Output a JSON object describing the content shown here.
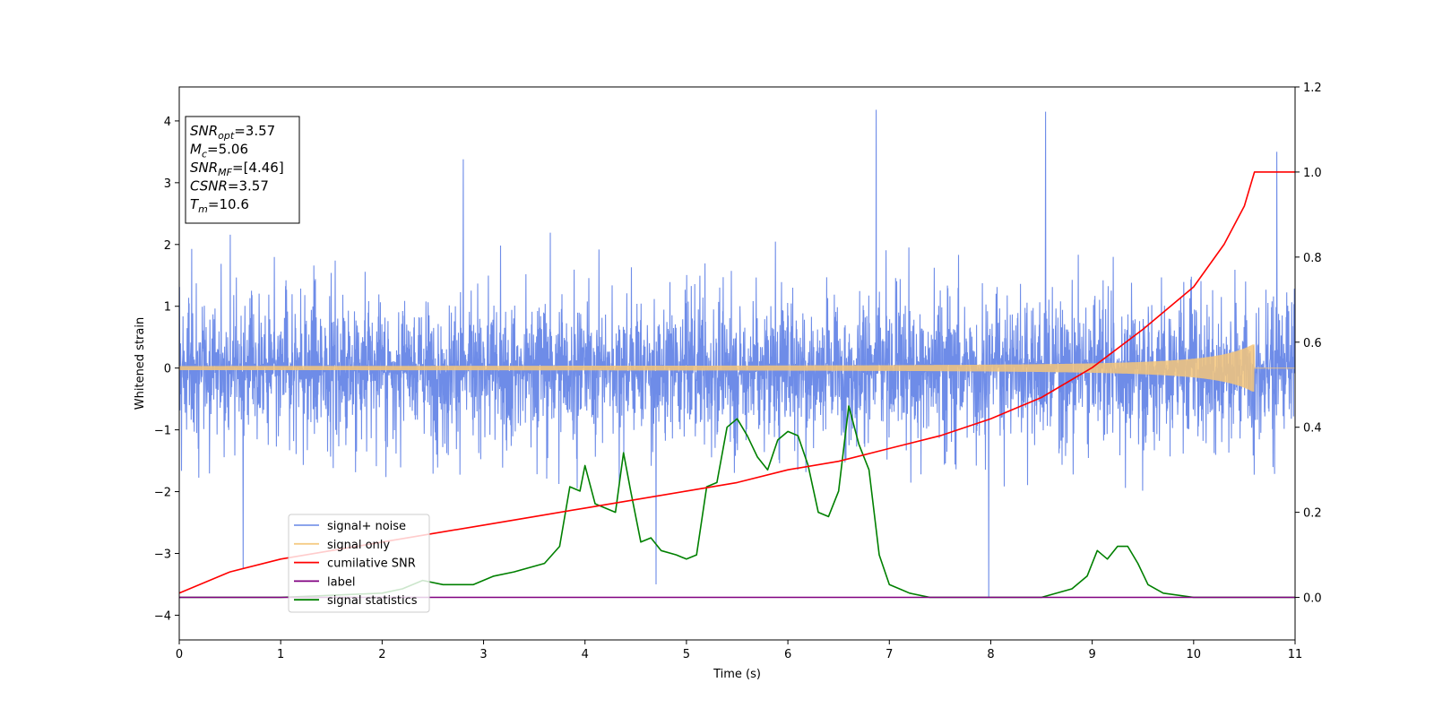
{
  "chart_data": {
    "type": "line",
    "xlabel": "Time (s)",
    "ylabel": "Whitened strain",
    "xlim": [
      0,
      11
    ],
    "ylim": [
      -4.4,
      4.55
    ],
    "y2lim": [
      -0.1,
      1.2
    ],
    "x_ticks": [
      "0",
      "1",
      "2",
      "3",
      "4",
      "5",
      "6",
      "7",
      "8",
      "9",
      "10",
      "11"
    ],
    "y_ticks": [
      "−4",
      "−3",
      "−2",
      "−1",
      "0",
      "1",
      "2",
      "3",
      "4"
    ],
    "y2_ticks": [
      "0.0",
      "0.2",
      "0.4",
      "0.6",
      "0.8",
      "1.0",
      "1.2"
    ],
    "stats_box": [
      {
        "base": "SNR",
        "sub": "opt",
        "value": "=3.57"
      },
      {
        "base": "M",
        "sub": "c",
        "value": "=5.06"
      },
      {
        "base": "SNR",
        "sub": "MF",
        "value": "=[4.46]"
      },
      {
        "base": "CSNR",
        "sub": "",
        "value": "=3.57"
      },
      {
        "base": "T",
        "sub": "m",
        "value": "=10.6"
      }
    ],
    "series": [
      {
        "name": "signal+ noise",
        "axis": "left",
        "color": "#6e8ce8",
        "description_of_values": "whitened noise, roughly ±1.6 typical, peaks near ±4.2",
        "typical_amplitude": 1.6,
        "max_peaks": [
          {
            "x": 6.87,
            "y": 4.18
          },
          {
            "x": 8.54,
            "y": 4.15
          },
          {
            "x": 10.82,
            "y": 3.5
          },
          {
            "x": 2.8,
            "y": 3.38
          },
          {
            "x": 7.98,
            "y": -3.7
          },
          {
            "x": 0.63,
            "y": -3.25
          },
          {
            "x": 4.7,
            "y": -3.5
          }
        ]
      },
      {
        "name": "signal only",
        "axis": "left",
        "color": "#f5c67a",
        "chirp_end": 10.6,
        "start_amplitude": 0.03,
        "end_amplitude": 0.4
      },
      {
        "name": "cumilative SNR",
        "axis": "right",
        "color": "#ff0000",
        "x": [
          0,
          0.5,
          1,
          1.5,
          2,
          2.5,
          3,
          3.5,
          4,
          4.5,
          5,
          5.5,
          6,
          6.5,
          7,
          7.5,
          8,
          8.5,
          9,
          9.5,
          10,
          10.3,
          10.5,
          10.6,
          11
        ],
        "y": [
          0.01,
          0.06,
          0.09,
          0.11,
          0.13,
          0.15,
          0.17,
          0.19,
          0.21,
          0.23,
          0.25,
          0.27,
          0.3,
          0.32,
          0.35,
          0.38,
          0.42,
          0.47,
          0.54,
          0.63,
          0.73,
          0.83,
          0.92,
          1.0,
          1.0
        ]
      },
      {
        "name": "label",
        "axis": "right",
        "color": "#800080",
        "x": [
          0,
          11
        ],
        "y": [
          0.0,
          0.0
        ]
      },
      {
        "name": "signal statistics",
        "axis": "right",
        "color": "#008000",
        "x": [
          0,
          1,
          2,
          2.2,
          2.4,
          2.6,
          2.9,
          3.1,
          3.3,
          3.6,
          3.75,
          3.85,
          3.95,
          4.0,
          4.1,
          4.2,
          4.3,
          4.38,
          4.45,
          4.55,
          4.65,
          4.75,
          4.9,
          5.0,
          5.1,
          5.2,
          5.3,
          5.4,
          5.5,
          5.6,
          5.7,
          5.8,
          5.9,
          6.0,
          6.1,
          6.2,
          6.3,
          6.4,
          6.5,
          6.6,
          6.7,
          6.8,
          6.9,
          7.0,
          7.1,
          7.2,
          7.4,
          7.6,
          8.0,
          8.5,
          8.8,
          8.95,
          9.05,
          9.15,
          9.25,
          9.35,
          9.45,
          9.55,
          9.7,
          10.0,
          10.5,
          11
        ],
        "y": [
          0.0,
          0.0,
          0.01,
          0.02,
          0.04,
          0.03,
          0.03,
          0.05,
          0.06,
          0.08,
          0.12,
          0.26,
          0.25,
          0.31,
          0.22,
          0.21,
          0.2,
          0.34,
          0.25,
          0.13,
          0.14,
          0.11,
          0.1,
          0.09,
          0.1,
          0.26,
          0.27,
          0.4,
          0.42,
          0.38,
          0.33,
          0.3,
          0.37,
          0.39,
          0.38,
          0.31,
          0.2,
          0.19,
          0.25,
          0.45,
          0.36,
          0.3,
          0.1,
          0.03,
          0.02,
          0.01,
          0.0,
          0.0,
          0.0,
          0.0,
          0.02,
          0.05,
          0.11,
          0.09,
          0.12,
          0.12,
          0.08,
          0.03,
          0.01,
          0.0,
          0.0,
          0.0
        ]
      }
    ],
    "legend_position": "lower-left"
  }
}
